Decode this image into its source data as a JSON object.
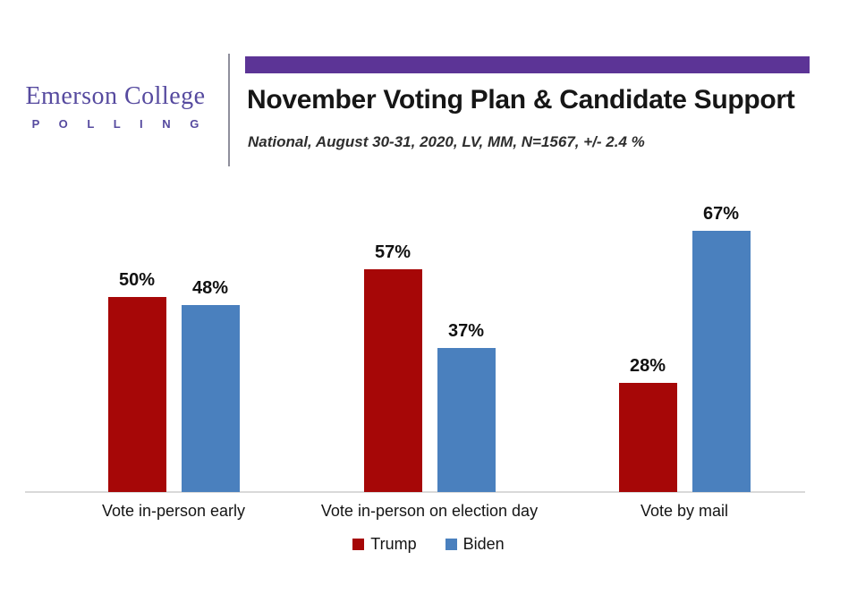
{
  "header": {
    "logo_name": "Emerson College",
    "logo_sub": "P O L L I N G",
    "title": "November Voting Plan & Candidate Support",
    "subtitle": "National, August 30-31, 2020, LV, MM,  N=1567, +/- 2.4 %"
  },
  "colors": {
    "accent_purple": "#5c3496",
    "logo_purple": "#564a9f",
    "trump_red": "#a60707",
    "biden_blue": "#4a80be",
    "axis_line": "#d9d9d9"
  },
  "chart_data": {
    "type": "bar",
    "title": "November Voting Plan & Candidate Support",
    "subtitle": "National, August 30-31, 2020, LV, MM, N=1567, +/- 2.4%",
    "categories": [
      "Vote in-person early",
      "Vote in-person on election day",
      "Vote by mail"
    ],
    "series": [
      {
        "name": "Trump",
        "color": "#a60707",
        "values": [
          50,
          57,
          28
        ]
      },
      {
        "name": "Biden",
        "color": "#4a80be",
        "values": [
          48,
          37,
          67
        ]
      }
    ],
    "value_suffix": "%",
    "xlabel": "",
    "ylabel": "",
    "ylim": [
      0,
      100
    ],
    "grid": false,
    "data_labels": true,
    "legend_position": "bottom"
  }
}
